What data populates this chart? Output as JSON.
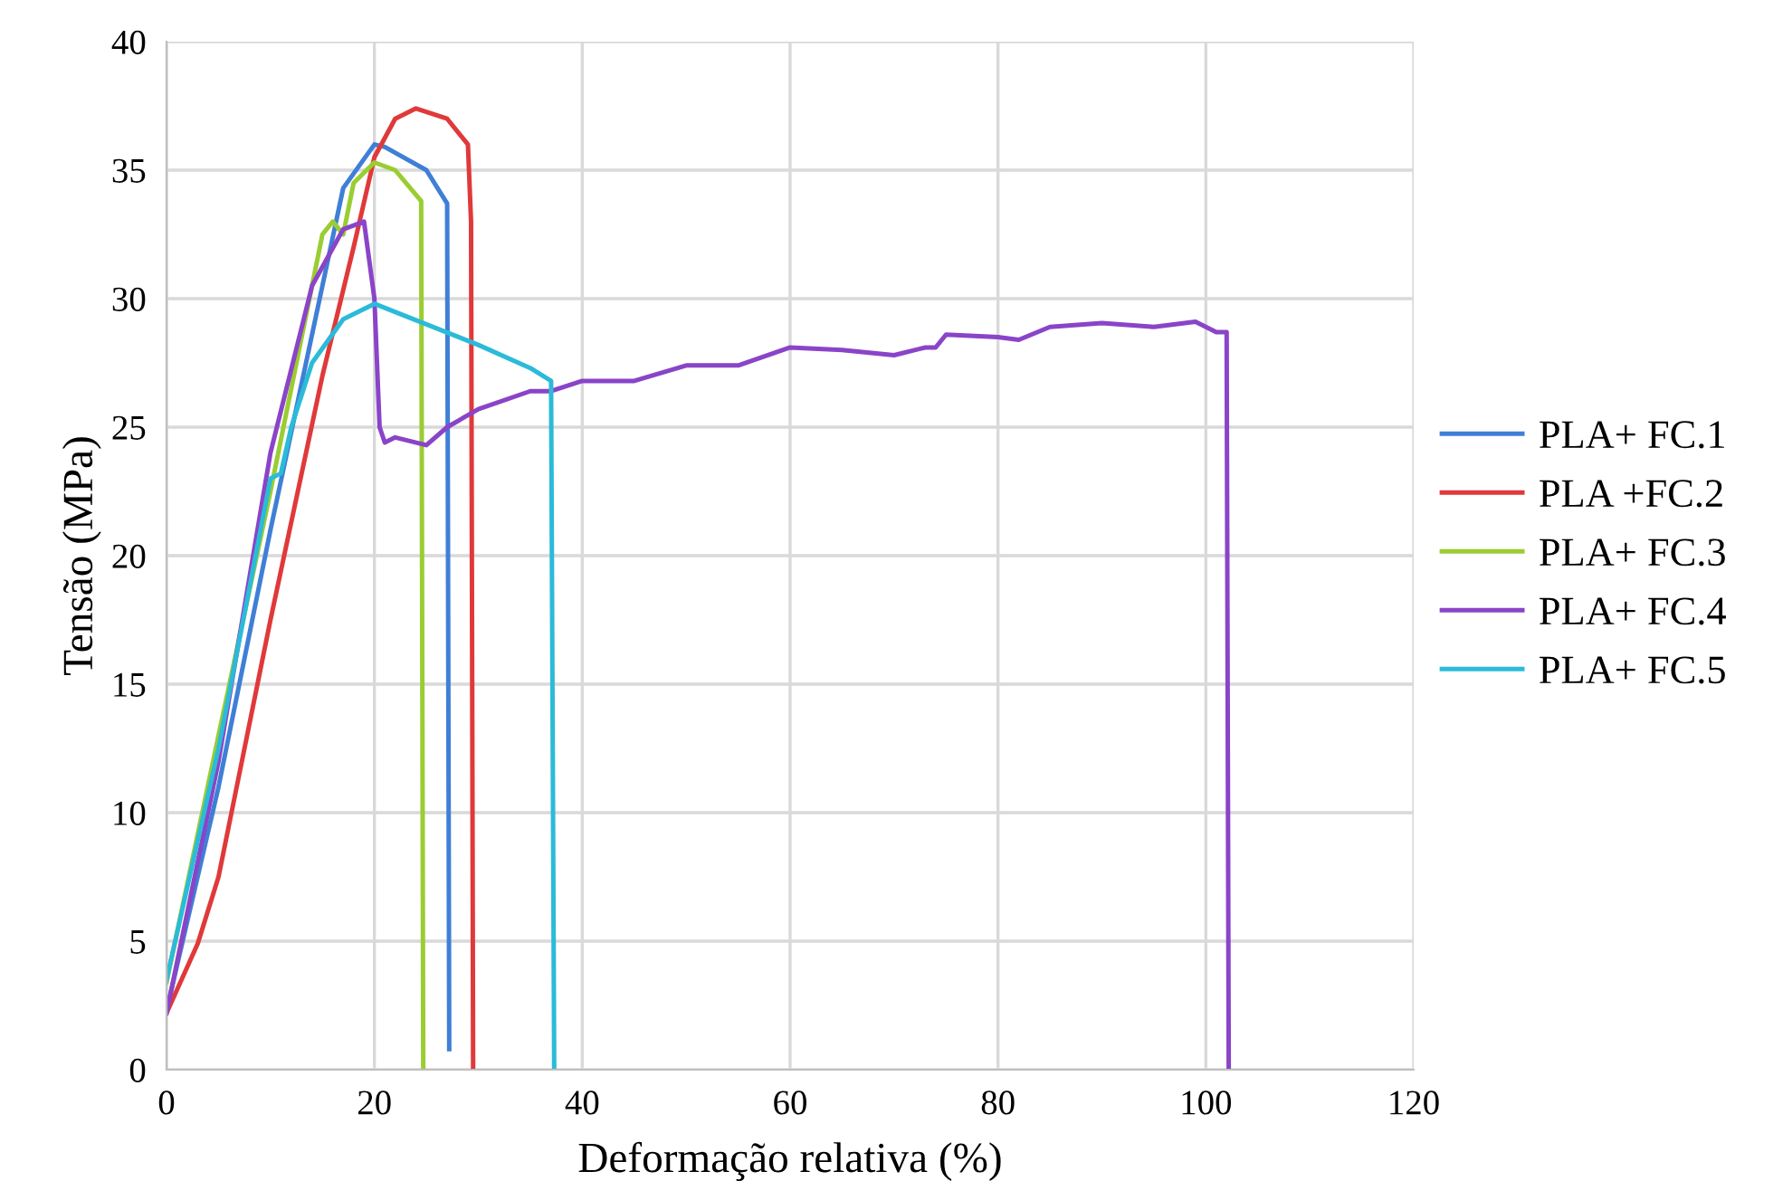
{
  "chart_data": {
    "type": "line",
    "xlabel": "Deformação relativa (%)",
    "ylabel": "Tensão (MPa)",
    "xlim": [
      0,
      120
    ],
    "xticks": [
      0,
      20,
      40,
      60,
      80,
      100,
      120
    ],
    "ylim": [
      0,
      40
    ],
    "yticks": [
      0,
      5,
      10,
      15,
      20,
      25,
      30,
      35,
      40
    ],
    "grid": true,
    "legend": "right",
    "marker": "none",
    "line_style": "solid",
    "series": [
      {
        "name": "PLA+ FC.1",
        "color": "#3f7fd6",
        "x": [
          0,
          5,
          10,
          15,
          17,
          20,
          21,
          25,
          27,
          27.2
        ],
        "values": [
          2.3,
          11,
          21,
          30.5,
          34.3,
          36,
          35.9,
          35,
          33.7,
          0.8
        ]
      },
      {
        "name": "PLA +FC.2",
        "color": "#e0393a",
        "x": [
          0,
          3,
          5,
          10,
          15,
          18,
          20,
          22,
          24,
          27,
          29,
          29.3,
          29.5
        ],
        "values": [
          2.2,
          4.9,
          7.5,
          17.5,
          27,
          32,
          35.5,
          37,
          37.4,
          37,
          36,
          33,
          0
        ]
      },
      {
        "name": "PLA+ FC.3",
        "color": "#9acd32",
        "x": [
          0,
          5,
          10,
          15,
          16,
          17,
          18,
          20,
          22,
          24.5,
          24.7
        ],
        "values": [
          3.4,
          13,
          22.5,
          32.5,
          33,
          32.5,
          34.5,
          35.3,
          35,
          33.8,
          0
        ]
      },
      {
        "name": "PLA+ FC.4",
        "color": "#8a44c8",
        "x": [
          0,
          5,
          10,
          14,
          17,
          19,
          20,
          20.5,
          21,
          22,
          25,
          27,
          30,
          35,
          37,
          40,
          45,
          50,
          55,
          60,
          65,
          70,
          73,
          74,
          75,
          80,
          82,
          85,
          90,
          95,
          99,
          101,
          102,
          102.2
        ],
        "values": [
          2.2,
          12,
          24,
          30.5,
          32.7,
          33,
          30,
          25,
          24.4,
          24.6,
          24.3,
          25,
          25.7,
          26.4,
          26.4,
          26.8,
          26.8,
          27.4,
          27.4,
          28.1,
          28,
          27.8,
          28.1,
          28.1,
          28.6,
          28.5,
          28.4,
          28.9,
          29.05,
          28.9,
          29.1,
          28.7,
          28.7,
          0
        ]
      },
      {
        "name": "PLA+ FC.5",
        "color": "#2bbbd8",
        "x": [
          0,
          5,
          10,
          11,
          12,
          14,
          17,
          20,
          25,
          30,
          35,
          37,
          37.3
        ],
        "values": [
          3.5,
          12.5,
          23,
          23.2,
          25,
          27.5,
          29.2,
          29.8,
          29,
          28.2,
          27.3,
          26.8,
          0
        ]
      }
    ]
  }
}
